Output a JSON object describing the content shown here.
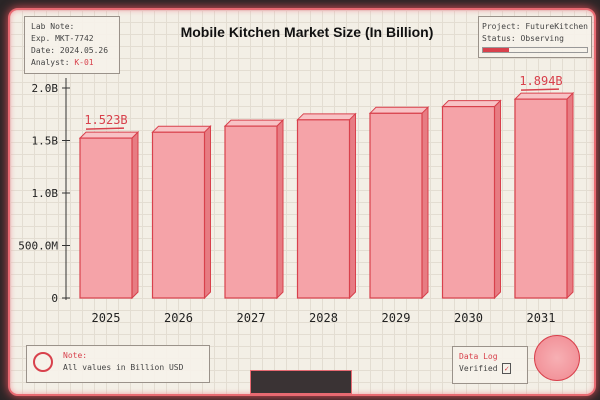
{
  "lab_note": {
    "line1": "Lab Note:",
    "line2": "Exp. MKT-7742",
    "line3": "Date: 2024.05.26",
    "analyst_label": "Analyst:",
    "analyst": "K-01"
  },
  "project": {
    "line1": "Project: FutureKitchen",
    "line2": "Status: Observing"
  },
  "note": {
    "label": "Note:",
    "text": "All values in Billion USD"
  },
  "data_log": {
    "label": "Data Log",
    "status": "Verified",
    "check": "✓"
  },
  "colors": {
    "accent": "#d8414c",
    "bar": "#f5a3a8",
    "frame": "#e86a72"
  },
  "chart_data": {
    "type": "bar",
    "title": "Mobile Kitchen Market Size (In Billion)",
    "categories": [
      "2025",
      "2026",
      "2027",
      "2028",
      "2029",
      "2030",
      "2031"
    ],
    "values": [
      1.523,
      1.579,
      1.637,
      1.697,
      1.759,
      1.823,
      1.894
    ],
    "data_labels": [
      {
        "index": 0,
        "text": "1.523B"
      },
      {
        "index": 6,
        "text": "1.894B"
      }
    ],
    "yticks": [
      0,
      0.5,
      1.0,
      1.5,
      2.0
    ],
    "ytick_labels": [
      "0",
      "500.0M",
      "1.0B",
      "1.5B",
      "2.0B"
    ],
    "ylim": [
      0,
      2.0
    ],
    "xlabel": "",
    "ylabel": "",
    "grid": true
  }
}
